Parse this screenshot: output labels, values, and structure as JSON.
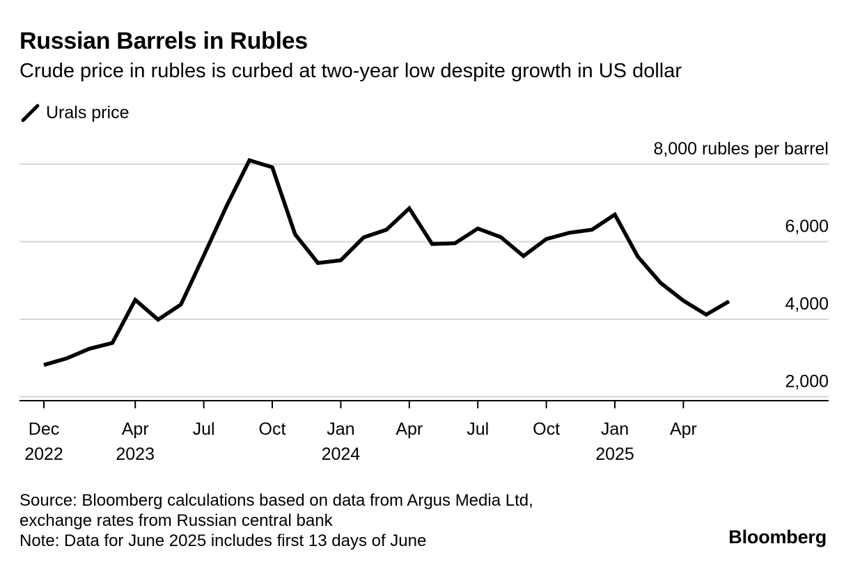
{
  "header": {
    "title": "Russian Barrels in Rubles",
    "subtitle": "Crude price in rubles is curbed at two-year low despite growth in US dollar"
  },
  "legend": {
    "series_label": "Urals price",
    "icon": "diagonal-line-icon"
  },
  "colors": {
    "line": "#000000",
    "grid": "#d6d6d6",
    "axis": "#000000",
    "text": "#000000"
  },
  "chart_data": {
    "type": "line",
    "title": "Russian Barrels in Rubles",
    "subtitle": "Crude price in rubles is curbed at two-year low despite growth in US dollar",
    "ylabel": "rubles per barrel",
    "y_unit_label": "8,000 rubles per barrel",
    "ylim": [
      1900,
      8000
    ],
    "yticks": [
      2000,
      4000,
      6000,
      8000
    ],
    "ytick_labels": [
      "2,000",
      "4,000",
      "6,000",
      "8,000 rubles per barrel"
    ],
    "grid": true,
    "legend_position": "top-left",
    "x_range": [
      0,
      34.5
    ],
    "xticks": [
      {
        "pos": 0,
        "label": "Dec",
        "year": "2022"
      },
      {
        "pos": 4,
        "label": "Apr",
        "year": "2023"
      },
      {
        "pos": 7,
        "label": "Jul",
        "year": ""
      },
      {
        "pos": 10,
        "label": "Oct",
        "year": ""
      },
      {
        "pos": 13,
        "label": "Jan",
        "year": "2024"
      },
      {
        "pos": 16,
        "label": "Apr",
        "year": ""
      },
      {
        "pos": 19,
        "label": "Jul",
        "year": ""
      },
      {
        "pos": 22,
        "label": "Oct",
        "year": ""
      },
      {
        "pos": 25,
        "label": "Jan",
        "year": "2025"
      },
      {
        "pos": 28,
        "label": "Apr",
        "year": ""
      }
    ],
    "series": [
      {
        "name": "Urals price",
        "x": [
          "2022-12",
          "2023-01",
          "2023-02",
          "2023-03",
          "2023-04",
          "2023-05",
          "2023-06",
          "2023-07",
          "2023-08",
          "2023-09",
          "2023-10",
          "2023-11",
          "2023-12",
          "2024-01",
          "2024-02",
          "2024-03",
          "2024-04",
          "2024-05",
          "2024-06",
          "2024-07",
          "2024-08",
          "2024-09",
          "2024-10",
          "2024-11",
          "2024-12",
          "2025-01",
          "2025-02",
          "2025-03",
          "2025-04",
          "2025-05",
          "2025-06"
        ],
        "values": [
          2820,
          2990,
          3240,
          3390,
          4500,
          3990,
          4380,
          5640,
          6920,
          8100,
          7920,
          6190,
          5450,
          5520,
          6110,
          6310,
          6860,
          5940,
          5960,
          6340,
          6120,
          5630,
          6070,
          6230,
          6310,
          6700,
          5620,
          4940,
          4480,
          4120,
          4460
        ]
      }
    ]
  },
  "footer": {
    "source_line1": "Source: Bloomberg calculations based on data from Argus Media Ltd,",
    "source_line2": "exchange rates from Russian central bank",
    "note": "Note: Data for June 2025 includes first 13 days of June",
    "brand": "Bloomberg"
  }
}
